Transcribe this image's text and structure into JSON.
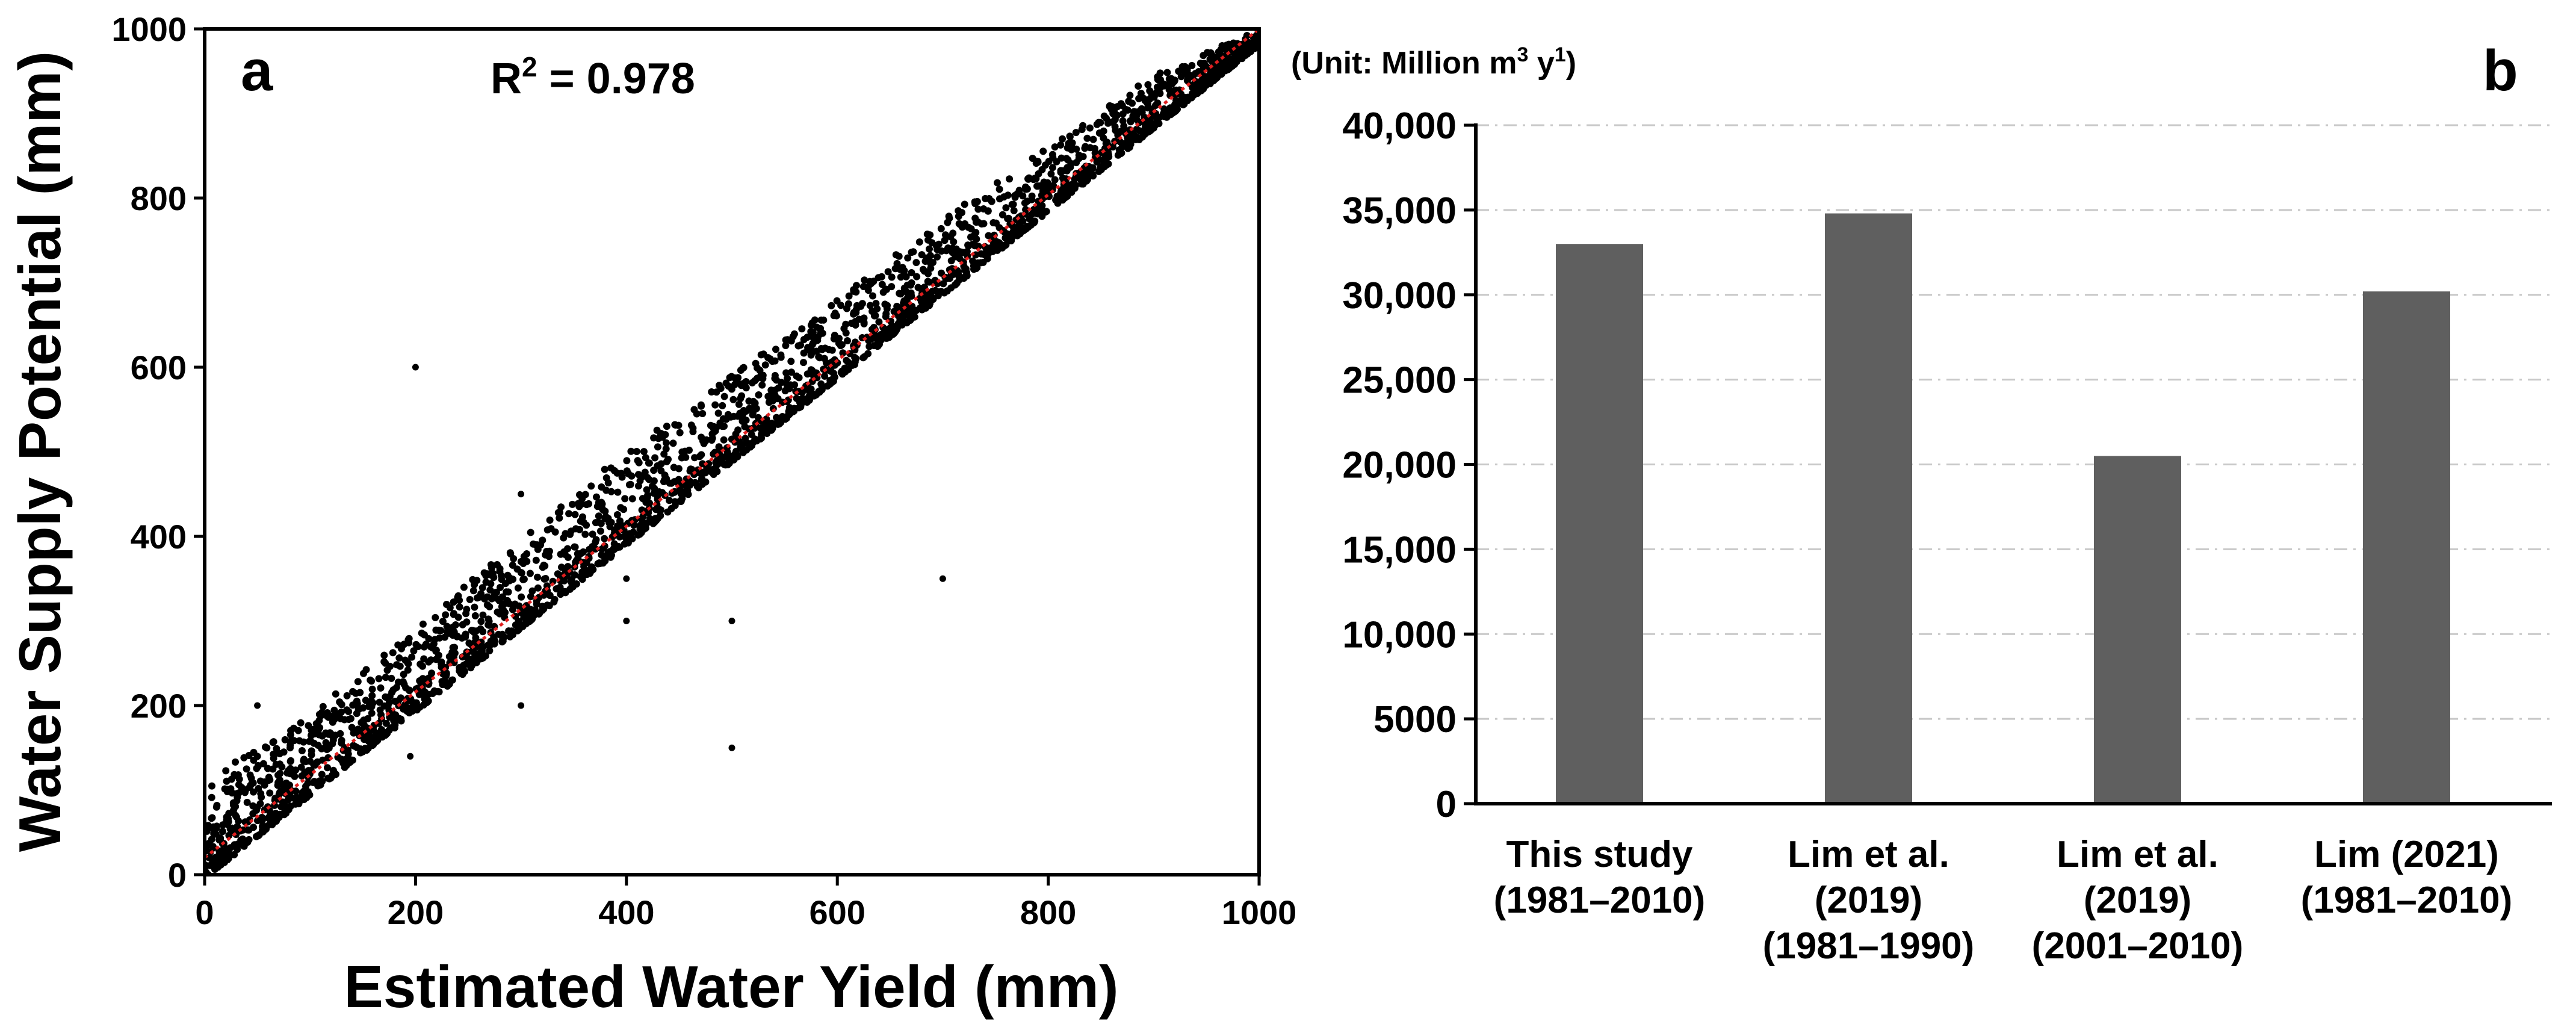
{
  "panel_a_label": "a",
  "panel_b_label": "b",
  "chart_data": [
    {
      "type": "scatter",
      "panel": "a",
      "title": "",
      "annotation": {
        "prefix": "R",
        "superscript": "2",
        "suffix": " = 0.978"
      },
      "xlabel": "Estimated Water Yield (mm)",
      "ylabel": "Water  Supply Potential (mm)",
      "xlim": [
        0,
        1000
      ],
      "ylim": [
        0,
        1000
      ],
      "xticks": [
        0,
        200,
        400,
        600,
        800,
        1000
      ],
      "yticks": [
        0,
        200,
        400,
        600,
        800,
        1000
      ],
      "tick_labels_x": [
        "0",
        "200",
        "400",
        "600",
        "800",
        "1000"
      ],
      "tick_labels_y": [
        "0",
        "200",
        "400",
        "600",
        "800",
        "1000"
      ],
      "fit_line": {
        "x": [
          0,
          1000
        ],
        "y": [
          20,
          1000
        ],
        "color": "#e02020",
        "style": "dotted"
      },
      "point_cloud": {
        "description_upper_offset": [
          [
            0,
            110
          ],
          [
            100,
            190
          ],
          [
            200,
            290
          ],
          [
            300,
            400
          ],
          [
            400,
            500
          ],
          [
            500,
            590
          ],
          [
            600,
            680
          ],
          [
            700,
            775
          ],
          [
            800,
            860
          ],
          [
            900,
            945
          ],
          [
            1000,
            1000
          ]
        ]
      },
      "outliers": [
        {
          "x": 200,
          "y": 600
        },
        {
          "x": 300,
          "y": 450
        },
        {
          "x": 400,
          "y": 350
        },
        {
          "x": 400,
          "y": 300
        },
        {
          "x": 500,
          "y": 300
        },
        {
          "x": 700,
          "y": 350
        },
        {
          "x": 300,
          "y": 200
        },
        {
          "x": 500,
          "y": 150
        },
        {
          "x": 195,
          "y": 140
        },
        {
          "x": 50,
          "y": 200
        },
        {
          "x": 150,
          "y": 145
        }
      ],
      "marker_color": "#000000"
    },
    {
      "type": "bar",
      "panel": "b",
      "unit_label": {
        "prefix": "(Unit: Million m",
        "sup1": "3",
        "middle": " y",
        "sup2": "1",
        "suffix": ")"
      },
      "categories": [
        [
          "This study",
          "(1981–2010)"
        ],
        [
          "Lim et al.",
          "(2019)",
          "(1981–1990)"
        ],
        [
          "Lim et al.",
          "(2019)",
          "(2001–2010)"
        ],
        [
          "Lim (2021)",
          "(1981–2010)"
        ]
      ],
      "values": [
        33000,
        34800,
        20500,
        30200
      ],
      "ylim": [
        0,
        40000
      ],
      "yticks": [
        0,
        5000,
        10000,
        15000,
        20000,
        25000,
        30000,
        35000,
        40000
      ],
      "tick_labels_y": [
        "0",
        "5000",
        "10,000",
        "15,000",
        "20,000",
        "25,000",
        "30,000",
        "35,000",
        "40,000"
      ],
      "bar_color": "#5f5f5f",
      "grid_color": "#c8c8c8",
      "grid": true
    }
  ]
}
